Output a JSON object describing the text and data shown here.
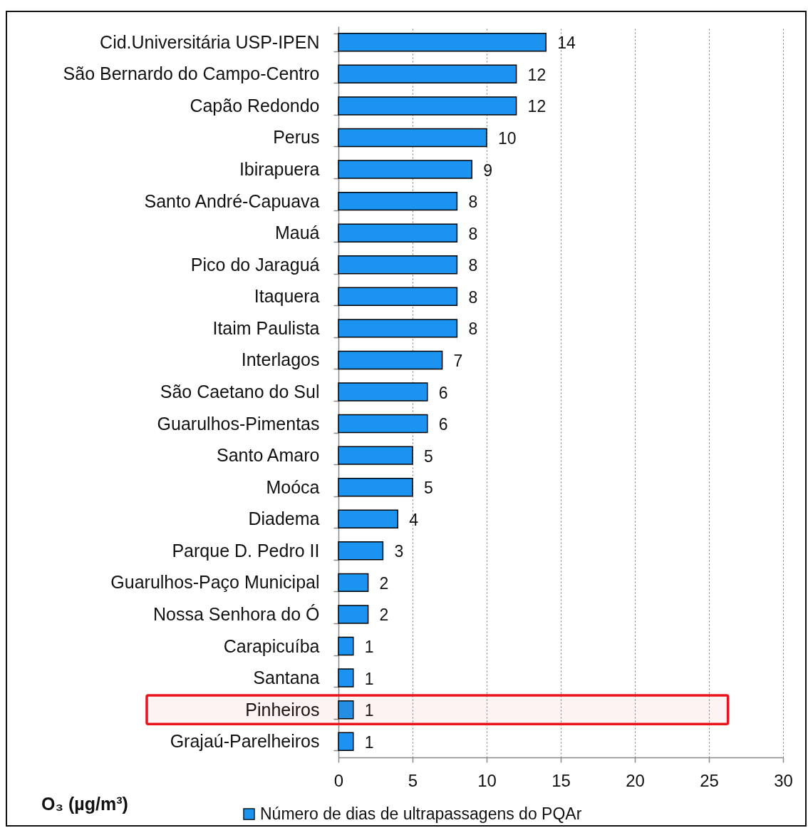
{
  "chart_data": {
    "type": "bar",
    "orientation": "horizontal",
    "title": "O₃ (µg/m³)",
    "categories": [
      "Cid.Universitária USP-IPEN",
      "São Bernardo do Campo-Centro",
      "Capão Redondo",
      "Perus",
      "Ibirapuera",
      "Santo André-Capuava",
      "Mauá",
      "Pico do Jaraguá",
      "Itaquera",
      "Itaim Paulista",
      "Interlagos",
      "São Caetano do Sul",
      "Guarulhos-Pimentas",
      "Santo Amaro",
      "Moóca",
      "Diadema",
      "Parque D. Pedro II",
      "Guarulhos-Paço Municipal",
      "Nossa Senhora do Ó",
      "Carapicuíba",
      "Santana",
      "Pinheiros",
      "Grajaú-Parelheiros"
    ],
    "series": [
      {
        "name": "Número de dias de ultrapassagens do PQAr",
        "color": "#1a94f0",
        "values": [
          14,
          12,
          12,
          10,
          9,
          8,
          8,
          8,
          8,
          8,
          7,
          6,
          6,
          5,
          5,
          4,
          3,
          2,
          2,
          1,
          1,
          1,
          1
        ]
      }
    ],
    "xlim": [
      0,
      30
    ],
    "xticks": [
      0,
      5,
      10,
      15,
      20,
      25,
      30
    ],
    "grid": "x",
    "legend": "bottom",
    "data_labels": true,
    "bands": [
      {
        "axis": "y",
        "from": "Pinheiros",
        "to": "Pinheiros",
        "color": "#e8141b"
      }
    ]
  }
}
